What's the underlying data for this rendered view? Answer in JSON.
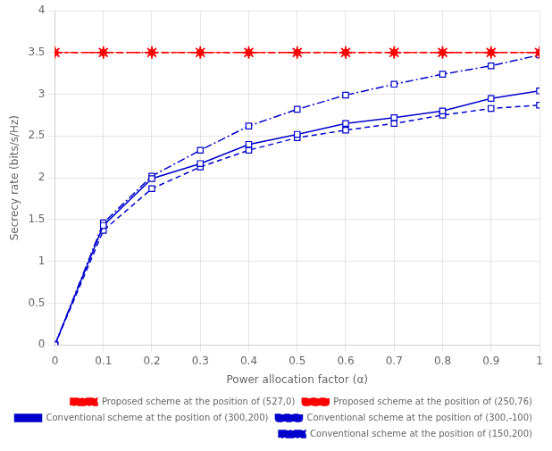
{
  "chart_data": {
    "type": "line",
    "xlabel": "Power allocation factor (α)",
    "ylabel": "Secrecy rate (bits/s/Hz)",
    "x": [
      0,
      0.1,
      0.2,
      0.3,
      0.4,
      0.5,
      0.6,
      0.7,
      0.8,
      0.9,
      1.0
    ],
    "series": [
      {
        "name": "Proposed scheme at the position of (527,0)",
        "color": "#FF0000",
        "marker": "star",
        "line_style": "dashdot",
        "values": [
          3.5,
          3.5,
          3.5,
          3.5,
          3.5,
          3.5,
          3.5,
          3.5,
          3.5,
          3.5,
          3.5
        ]
      },
      {
        "name": "Proposed scheme at the position of (250,76)",
        "color": "#FF0000",
        "marker": "diamond",
        "line_style": "dashed",
        "values": [
          3.5,
          3.5,
          3.5,
          3.5,
          3.5,
          3.5,
          3.5,
          3.5,
          3.5,
          3.5,
          3.5
        ]
      },
      {
        "name": "Conventional scheme at the position of (300,200)",
        "color": "#0000CD",
        "marker": "square",
        "line_style": "solid",
        "values": [
          0.0,
          1.43,
          1.99,
          2.17,
          2.4,
          2.52,
          2.65,
          2.72,
          2.8,
          2.95,
          3.04
        ]
      },
      {
        "name": "Conventional scheme at the position of (300,-100)",
        "color": "#0000CD",
        "marker": "square",
        "line_style": "dashed",
        "values": [
          0.0,
          1.37,
          1.87,
          2.13,
          2.33,
          2.48,
          2.57,
          2.65,
          2.75,
          2.83,
          2.87
        ]
      },
      {
        "name": "Conventional scheme at the position of (150,200)",
        "color": "#0000CD",
        "marker": "square",
        "line_style": "dashdot",
        "values": [
          0.0,
          1.46,
          2.02,
          2.33,
          2.62,
          2.82,
          2.99,
          3.12,
          3.24,
          3.34,
          3.47
        ]
      }
    ],
    "xlim": [
      0,
      1.0
    ],
    "ylim": [
      0,
      4.0
    ],
    "xticks": [
      0,
      0.1,
      0.2,
      0.3,
      0.4,
      0.5,
      0.6,
      0.7,
      0.8,
      0.9,
      1.0
    ],
    "yticks": [
      0,
      0.5,
      1.0,
      1.5,
      2.0,
      2.5,
      3.0,
      3.5,
      4.0
    ],
    "grid": true,
    "legend": "lower right"
  }
}
